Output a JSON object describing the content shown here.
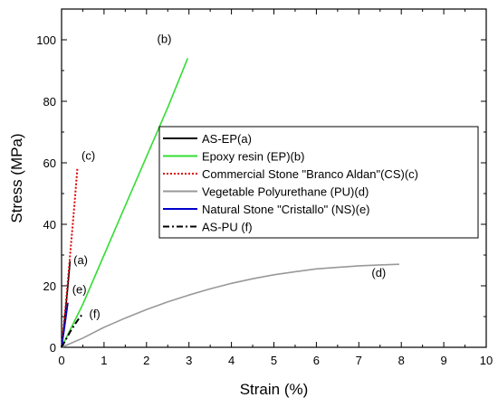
{
  "chart_data": {
    "type": "line",
    "xlabel": "Strain (%)",
    "ylabel": "Stress (MPa)",
    "xlim": [
      0,
      10
    ],
    "ylim": [
      0,
      110
    ],
    "xticks": [
      0,
      1,
      2,
      3,
      4,
      5,
      6,
      7,
      8,
      9,
      10
    ],
    "yticks": [
      0,
      20,
      40,
      60,
      80,
      100
    ],
    "grid": false,
    "legend_position": "center-right",
    "series": [
      {
        "name": "AS-EP(a)",
        "color": "#000000",
        "style": "solid",
        "x": [
          0,
          0.05,
          0.1,
          0.15,
          0.2
        ],
        "y": [
          0,
          6,
          13,
          20,
          28
        ]
      },
      {
        "name": "Epoxy resin (EP)(b)",
        "color": "#33dd33",
        "style": "solid",
        "x": [
          0,
          0.5,
          1.0,
          1.5,
          2.0,
          2.5,
          2.97
        ],
        "y": [
          0,
          14,
          30,
          46,
          62,
          78,
          94
        ]
      },
      {
        "name": "Commercial Stone \"Branco Aldan\"(CS)(c)",
        "color": "#dd0000",
        "style": "dotted",
        "x": [
          0,
          0.1,
          0.2,
          0.3,
          0.37
        ],
        "y": [
          0,
          14,
          30,
          46,
          58
        ]
      },
      {
        "name": "Vegetable Polyurethane (PU)(d)",
        "color": "#999999",
        "style": "solid",
        "x": [
          0,
          0.5,
          1,
          1.5,
          2,
          2.5,
          3,
          3.5,
          4,
          4.5,
          5,
          5.5,
          6,
          6.5,
          7,
          7.5,
          7.95
        ],
        "y": [
          0,
          3,
          6.5,
          9.5,
          12.3,
          14.8,
          17,
          19,
          20.8,
          22.3,
          23.6,
          24.6,
          25.5,
          26,
          26.5,
          26.8,
          27
        ]
      },
      {
        "name": "Natural Stone \"Cristallo\" (NS)(e)",
        "color": "#0000cc",
        "style": "solid",
        "x": [
          0,
          0.05,
          0.1,
          0.15
        ],
        "y": [
          0,
          4.5,
          9.5,
          14.5
        ]
      },
      {
        "name": "AS-PU (f)",
        "color": "#000000",
        "style": "dashdot",
        "x": [
          0,
          0.1,
          0.2,
          0.3,
          0.4,
          0.5
        ],
        "y": [
          0,
          2.5,
          5,
          7.2,
          9.2,
          11
        ]
      }
    ],
    "annotations": [
      {
        "text": "(a)",
        "x": 0.28,
        "y": 27
      },
      {
        "text": "(b)",
        "x": 2.25,
        "y": 99
      },
      {
        "text": "(c)",
        "x": 0.47,
        "y": 61
      },
      {
        "text": "(d)",
        "x": 7.3,
        "y": 23
      },
      {
        "text": "(e)",
        "x": 0.25,
        "y": 17.5
      },
      {
        "text": "(f)",
        "x": 0.65,
        "y": 9.5
      }
    ]
  }
}
